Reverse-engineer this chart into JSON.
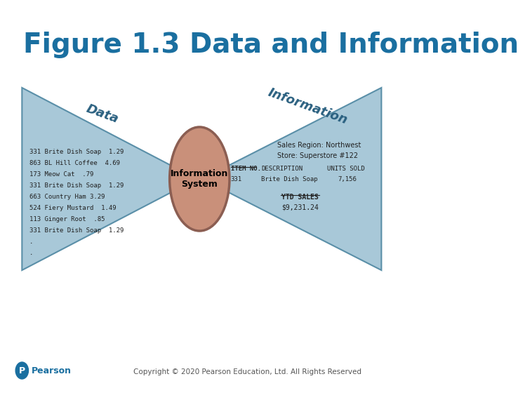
{
  "title": "Figure 1.3 Data and Information",
  "title_color": "#1a6fa0",
  "title_fontsize": 28,
  "bg_color": "#ffffff",
  "left_label": "Data",
  "right_label": "Information",
  "center_label": "Information\nSystem",
  "left_triangle_color": "#a8c8d8",
  "left_triangle_edge_color": "#5a8fa8",
  "right_triangle_color": "#a8c8d8",
  "right_triangle_edge_color": "#5a8fa8",
  "ellipse_face_color": "#c9907a",
  "ellipse_edge_color": "#8b5e52",
  "data_lines": [
    "331 Brite Dish Soap  1.29",
    "863 BL Hill Coffee  4.69",
    "173 Meow Cat  .79",
    "331 Brite Dish Soap  1.29",
    "663 Country Ham 3.29",
    "524 Fiery Mustard  1.49",
    "113 Ginger Root  .85",
    "331 Brite Dish Soap  1.29",
    ".",
    "."
  ],
  "info_line1": "Sales Region: Northwest",
  "info_line2": "Store: Superstore #122",
  "info_ytd_label": "YTD SALES",
  "info_ytd_value": "$9,231.24",
  "footer_text": "Copyright © 2020 Pearson Education, Ltd. All Rights Reserved",
  "footer_color": "#555555",
  "pearson_color": "#1a6fa0",
  "item_no_label": "ITEM NO.",
  "description_label": "DESCRIPTION",
  "units_sold_label": "UNITS SOLD",
  "item_no_value": "331",
  "description_value": "Brite Dish Soap",
  "units_sold_value": "7,156"
}
